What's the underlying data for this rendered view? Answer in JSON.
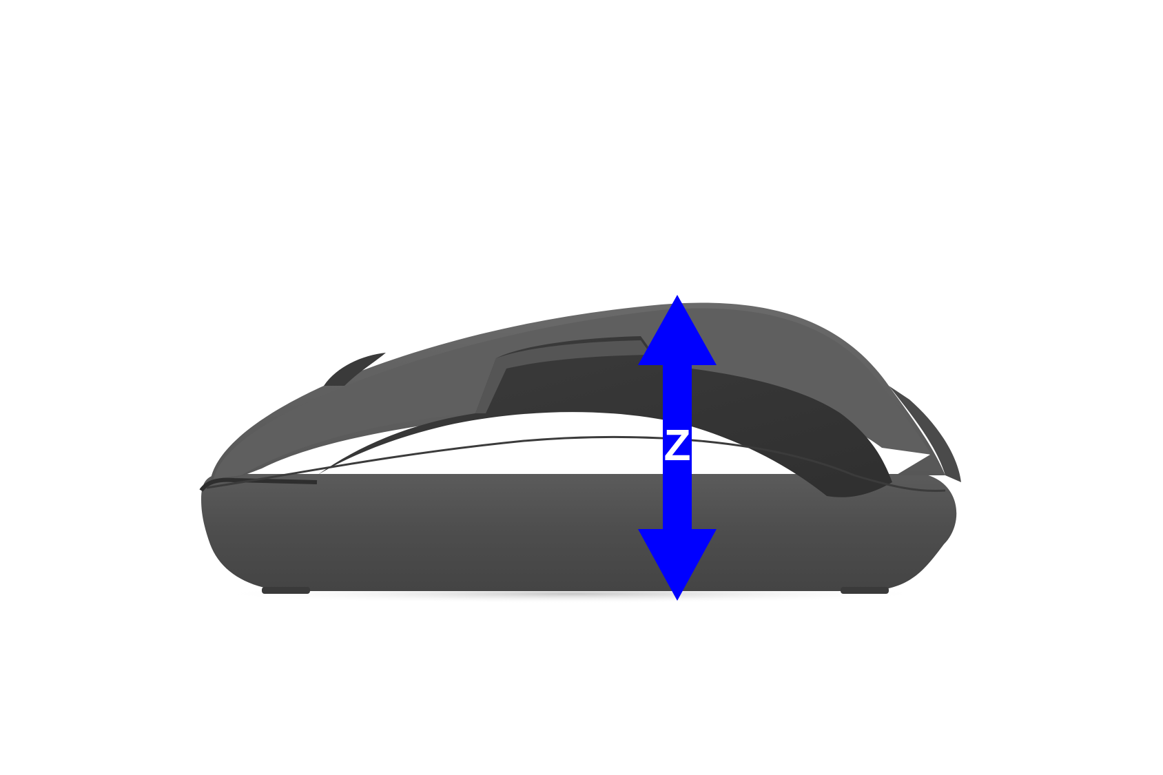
{
  "image": {
    "subject": "computer-mouse",
    "view": "side-profile"
  },
  "dimension": {
    "axis": "Z",
    "meaning": "height",
    "arrow_color": "#0000ff",
    "label_color": "#ffffff"
  },
  "colors": {
    "background": "#ffffff",
    "mouse_body": "#4c4c4c",
    "mouse_top": "#5a5a5a",
    "mouse_highlight": "#6e6e6e",
    "mouse_dark": "#333333"
  }
}
